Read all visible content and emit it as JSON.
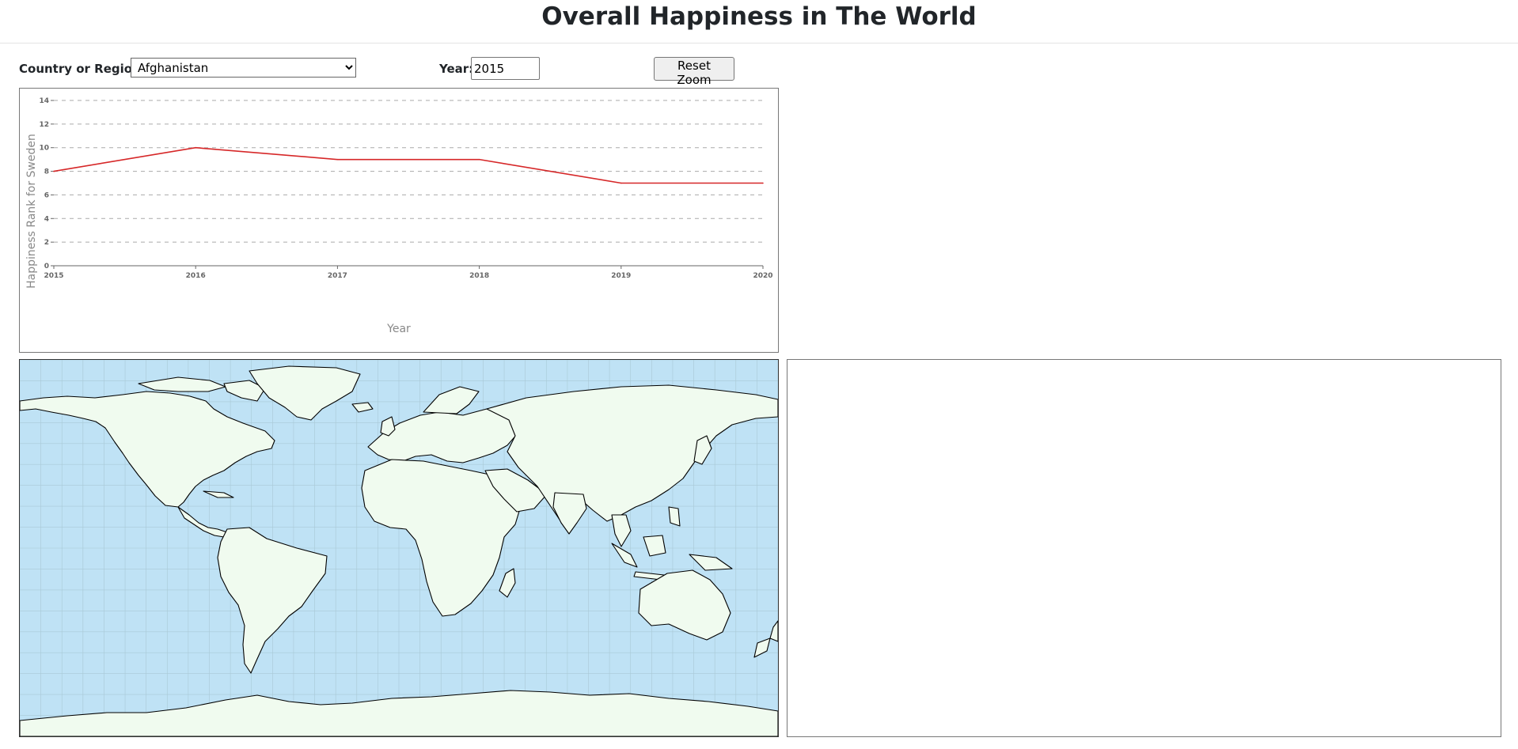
{
  "page": {
    "title": "Overall Happiness in The World"
  },
  "controls": {
    "country_label": "Country or Region:",
    "country_selected": "Afghanistan",
    "year_label": "Year:",
    "year_value": "2015",
    "reset_label": "Reset Zoom"
  },
  "chart_data": {
    "type": "line",
    "xlabel": "Year",
    "ylabel": "Happiness Rank for Sweden",
    "x": [
      2015,
      2016,
      2017,
      2018,
      2019,
      2020
    ],
    "x_tick_labels": [
      "2015",
      "2016",
      "2017",
      "2018",
      "2019",
      "2020"
    ],
    "y_ticks": [
      0,
      2,
      4,
      6,
      8,
      10,
      12,
      14
    ],
    "xlim": [
      2015,
      2020
    ],
    "ylim": [
      0,
      14
    ],
    "grid": "horizontal dashed",
    "series": [
      {
        "values": [
          8,
          10,
          9,
          9,
          7,
          7
        ],
        "color": "#d62728"
      }
    ]
  },
  "map": {
    "ocean_color": "#bfe2f5",
    "land_color": "#f0fbef",
    "border_color": "#000000",
    "graticule_color": "#a9c9d6"
  },
  "detail_panel": {}
}
